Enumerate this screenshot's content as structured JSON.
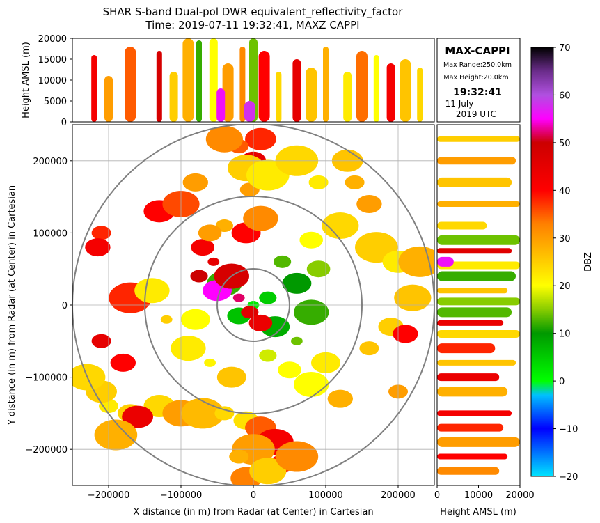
{
  "chart_data": {
    "type": "heatmap",
    "title_line1": "SHAR S-band Dual-pol DWR equivalent_reflectivity_factor",
    "title_line2": "Time: 2019-07-11 19:32:41, MAXZ CAPPI",
    "main_plot": {
      "xlabel": "X distance (in m) from Radar (at Center) in Cartesian",
      "ylabel": "Y distance (in m) from Radar (at Center) in Cartesian",
      "xlim": [
        -250000,
        250000
      ],
      "ylim": [
        -250000,
        250000
      ],
      "xticks": [
        -200000,
        -100000,
        0,
        100000,
        200000
      ],
      "yticks": [
        -200000,
        -100000,
        0,
        100000,
        200000
      ],
      "xtick_labels": [
        "−200000",
        "−100000",
        "0",
        "100000",
        "200000"
      ],
      "ytick_labels": [
        "−200000",
        "−100000",
        "0",
        "100000",
        "200000"
      ],
      "range_rings_m": [
        50000,
        150000,
        250000
      ],
      "grid": true
    },
    "top_panel": {
      "ylabel": "Height AMSL (m)",
      "ylim": [
        0,
        20000
      ],
      "yticks": [
        0,
        5000,
        10000,
        15000,
        20000
      ],
      "ytick_labels": [
        "0",
        "5000",
        "10000",
        "15000",
        "20000"
      ]
    },
    "right_panel": {
      "xlabel": "Height AMSL (m)",
      "xlim": [
        0,
        20000
      ],
      "xticks": [
        0,
        10000,
        20000
      ],
      "xtick_labels": [
        "0",
        "10000",
        "20000"
      ]
    },
    "info_box": {
      "heading": "MAX-CAPPI",
      "max_range": "Max Range:250.0km",
      "max_height": "Max Height:20.0km",
      "time": "19:32:41",
      "date": "11 July",
      "year_tz": "2019 UTC"
    },
    "colorbar": {
      "label": "DBZ",
      "range": [
        -20,
        70
      ],
      "ticks": [
        -20,
        -10,
        0,
        10,
        20,
        30,
        40,
        50,
        60,
        70
      ],
      "tick_labels": [
        "−20",
        "−10",
        "0",
        "10",
        "20",
        "30",
        "40",
        "50",
        "60",
        "70"
      ],
      "stops": [
        {
          "v": -20,
          "c": "#00e5ff"
        },
        {
          "v": -10,
          "c": "#0000ff"
        },
        {
          "v": -3,
          "c": "#00c0ff"
        },
        {
          "v": 0,
          "c": "#00ff00"
        },
        {
          "v": 10,
          "c": "#009900"
        },
        {
          "v": 15,
          "c": "#88cc00"
        },
        {
          "v": 20,
          "c": "#ffff00"
        },
        {
          "v": 28,
          "c": "#ffb000"
        },
        {
          "v": 33,
          "c": "#ff8000"
        },
        {
          "v": 40,
          "c": "#ff0000"
        },
        {
          "v": 50,
          "c": "#cc0000"
        },
        {
          "v": 55,
          "c": "#ff00ff"
        },
        {
          "v": 60,
          "c": "#b050e0"
        },
        {
          "v": 65,
          "c": "#6a2c8a"
        },
        {
          "v": 70,
          "c": "#000000"
        }
      ]
    },
    "echoes_xy_m_dbz": [
      [
        0,
        0,
        2
      ],
      [
        20000,
        10000,
        5
      ],
      [
        -20000,
        -15000,
        6
      ],
      [
        30000,
        -30000,
        8
      ],
      [
        -40000,
        30000,
        12
      ],
      [
        -55000,
        60000,
        45
      ],
      [
        -75000,
        40000,
        50
      ],
      [
        -70000,
        80000,
        42
      ],
      [
        -50000,
        20000,
        55
      ],
      [
        -30000,
        40000,
        48
      ],
      [
        -20000,
        10000,
        52
      ],
      [
        -5000,
        -10000,
        46
      ],
      [
        10000,
        -25000,
        44
      ],
      [
        -10000,
        100000,
        40
      ],
      [
        10000,
        120000,
        32
      ],
      [
        -5000,
        160000,
        30
      ],
      [
        0,
        200000,
        45
      ],
      [
        10000,
        230000,
        38
      ],
      [
        -10000,
        190000,
        25
      ],
      [
        20000,
        180000,
        22
      ],
      [
        -20000,
        220000,
        35
      ],
      [
        -40000,
        110000,
        28
      ],
      [
        -60000,
        100000,
        30
      ],
      [
        60000,
        30000,
        10
      ],
      [
        80000,
        -10000,
        12
      ],
      [
        60000,
        -50000,
        14
      ],
      [
        40000,
        60000,
        13
      ],
      [
        90000,
        50000,
        15
      ],
      [
        -80000,
        -20000,
        20
      ],
      [
        -90000,
        -60000,
        22
      ],
      [
        -60000,
        -80000,
        21
      ],
      [
        20000,
        -70000,
        18
      ],
      [
        50000,
        -90000,
        20
      ],
      [
        100000,
        -80000,
        22
      ],
      [
        80000,
        -110000,
        20
      ],
      [
        -200000,
        -140000,
        22
      ],
      [
        -170000,
        -150000,
        25
      ],
      [
        -130000,
        -140000,
        24
      ],
      [
        -100000,
        -150000,
        30
      ],
      [
        -70000,
        -150000,
        27
      ],
      [
        -40000,
        -150000,
        24
      ],
      [
        -10000,
        -160000,
        23
      ],
      [
        10000,
        -170000,
        35
      ],
      [
        30000,
        -190000,
        42
      ],
      [
        0,
        -200000,
        30
      ],
      [
        -20000,
        -210000,
        28
      ],
      [
        40000,
        -220000,
        40
      ],
      [
        -10000,
        -240000,
        33
      ],
      [
        20000,
        -230000,
        25
      ],
      [
        60000,
        -210000,
        32
      ],
      [
        140000,
        170000,
        28
      ],
      [
        160000,
        140000,
        30
      ],
      [
        130000,
        200000,
        26
      ],
      [
        120000,
        110000,
        24
      ],
      [
        170000,
        80000,
        25
      ],
      [
        160000,
        -60000,
        26
      ],
      [
        190000,
        -30000,
        25
      ],
      [
        200000,
        60000,
        22
      ],
      [
        220000,
        10000,
        26
      ],
      [
        230000,
        60000,
        28
      ],
      [
        -210000,
        100000,
        38
      ],
      [
        -215000,
        80000,
        42
      ],
      [
        -130000,
        130000,
        40
      ],
      [
        -100000,
        140000,
        36
      ],
      [
        -170000,
        10000,
        38
      ],
      [
        -210000,
        -50000,
        45
      ],
      [
        -180000,
        -80000,
        40
      ],
      [
        -160000,
        -155000,
        44
      ],
      [
        -40000,
        230000,
        32
      ],
      [
        60000,
        200000,
        24
      ],
      [
        90000,
        170000,
        22
      ],
      [
        -80000,
        170000,
        30
      ],
      [
        80000,
        90000,
        20
      ],
      [
        -30000,
        -100000,
        26
      ],
      [
        -140000,
        20000,
        22
      ],
      [
        -120000,
        -20000,
        25
      ],
      [
        120000,
        -130000,
        28
      ],
      [
        -210000,
        -120000,
        25
      ],
      [
        -230000,
        -100000,
        24
      ],
      [
        -190000,
        -180000,
        28
      ],
      [
        200000,
        -120000,
        30
      ],
      [
        210000,
        -40000,
        40
      ]
    ],
    "top_columns_x_m_topm_dbz": [
      [
        -220000,
        16000,
        42
      ],
      [
        -200000,
        11000,
        30
      ],
      [
        -170000,
        18000,
        35
      ],
      [
        -130000,
        17000,
        48
      ],
      [
        -110000,
        12000,
        25
      ],
      [
        -90000,
        20000,
        28
      ],
      [
        -75000,
        19500,
        12
      ],
      [
        -55000,
        20000,
        20
      ],
      [
        -35000,
        14000,
        30
      ],
      [
        -15000,
        18000,
        32
      ],
      [
        0,
        20000,
        14
      ],
      [
        15000,
        17000,
        40
      ],
      [
        35000,
        12000,
        24
      ],
      [
        60000,
        15000,
        45
      ],
      [
        80000,
        13000,
        26
      ],
      [
        100000,
        18000,
        28
      ],
      [
        130000,
        12000,
        22
      ],
      [
        150000,
        17000,
        34
      ],
      [
        170000,
        16000,
        20
      ],
      [
        190000,
        14000,
        42
      ],
      [
        210000,
        15000,
        26
      ],
      [
        230000,
        13000,
        24
      ],
      [
        -45000,
        8000,
        56
      ],
      [
        -5000,
        5000,
        58
      ]
    ],
    "right_rows_y_m_extentm_dbz": [
      [
        230000,
        20000,
        25
      ],
      [
        200000,
        19000,
        30
      ],
      [
        170000,
        18000,
        26
      ],
      [
        140000,
        20000,
        28
      ],
      [
        110000,
        12000,
        24
      ],
      [
        90000,
        20000,
        14
      ],
      [
        75000,
        18000,
        46
      ],
      [
        55000,
        20000,
        22
      ],
      [
        40000,
        19000,
        12
      ],
      [
        20000,
        17000,
        26
      ],
      [
        5000,
        20000,
        15
      ],
      [
        -10000,
        18000,
        13
      ],
      [
        -25000,
        16000,
        44
      ],
      [
        -40000,
        20000,
        24
      ],
      [
        -60000,
        14000,
        38
      ],
      [
        -80000,
        19000,
        26
      ],
      [
        -100000,
        15000,
        44
      ],
      [
        -120000,
        17000,
        28
      ],
      [
        -150000,
        18000,
        42
      ],
      [
        -170000,
        16000,
        38
      ],
      [
        -190000,
        20000,
        30
      ],
      [
        -210000,
        17000,
        40
      ],
      [
        -230000,
        15000,
        32
      ],
      [
        60000,
        4000,
        56
      ]
    ]
  }
}
